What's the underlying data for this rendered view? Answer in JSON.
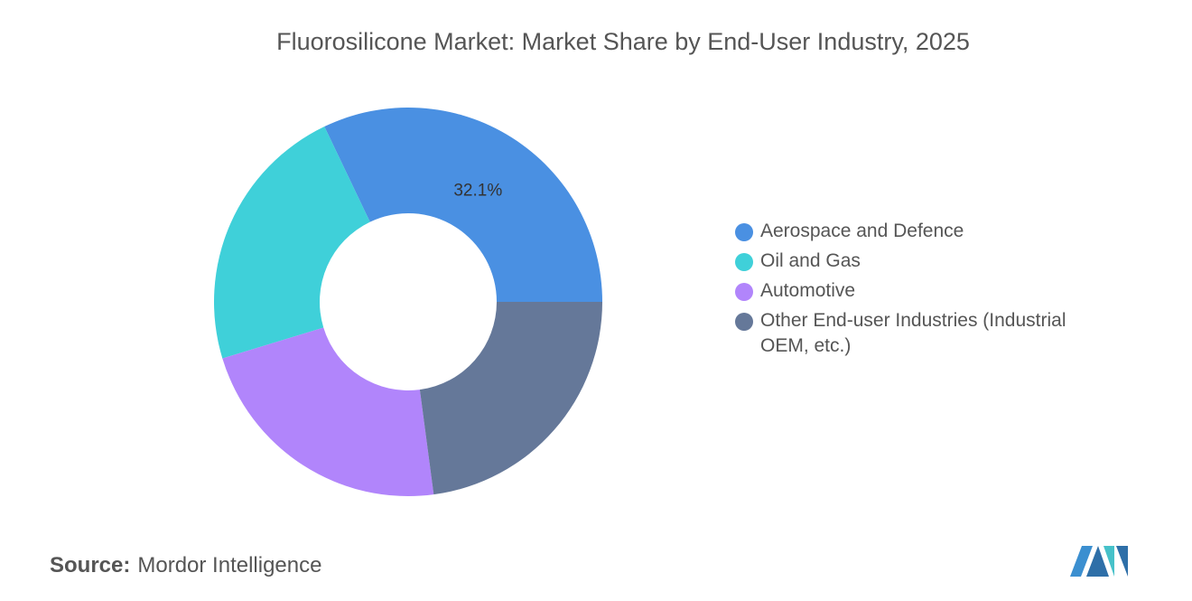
{
  "chart_data": {
    "type": "donut",
    "title": "Fluorosilicone Market: Market Share by End-User Industry, 2025",
    "categories": [
      "Aerospace and Defence",
      "Oil and Gas",
      "Automotive",
      "Other End-user Industries (Industrial OEM, etc.)"
    ],
    "values": [
      32.1,
      22.6,
      22.4,
      22.9
    ],
    "value_labels": [
      "32.1%",
      null,
      null,
      null
    ],
    "colors": [
      "#4a90e2",
      "#3fd0d9",
      "#b185fb",
      "#657899"
    ],
    "legend": "right"
  },
  "source": {
    "label": "Source:",
    "text": "Mordor Intelligence"
  }
}
